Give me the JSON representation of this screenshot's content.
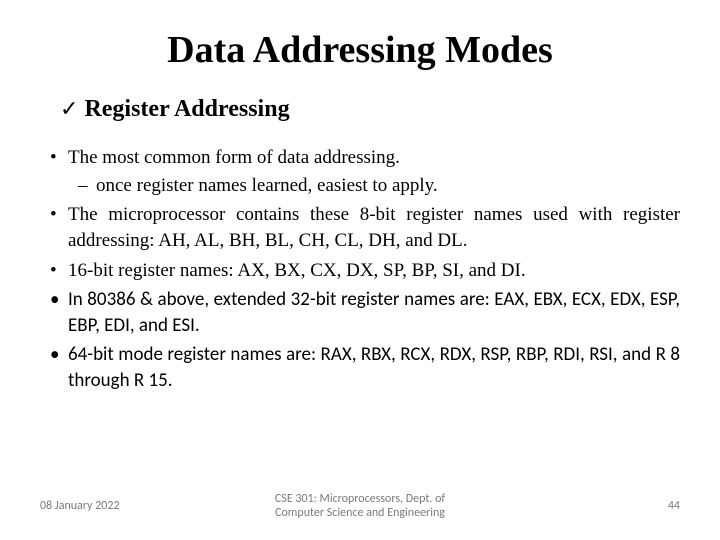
{
  "title": "Data Addressing Modes",
  "subtitle": "Register Addressing",
  "check_glyph": "✓",
  "bullets": {
    "b1": "The most common form of data addressing.",
    "b1_sub": "once register names learned, easiest to apply.",
    "b2": "The microprocessor contains these 8-bit register names used with register addressing: AH, AL, BH, BL, CH, CL, DH, and DL.",
    "b3": "16-bit register names: AX, BX, CX, DX, SP, BP, SI, and DI.",
    "b4": " In 80386 & above, extended 32-bit register names are: EAX, EBX, ECX, EDX, ESP, EBP, EDI, and ESI.",
    "b5": "64-bit mode register names are: RAX, RBX, RCX, RDX, RSP, RBP, RDI, RSI, and R 8 through R 15."
  },
  "footer": {
    "date": "08 January 2022",
    "center_line1": "CSE 301: Microprocessors, Dept. of",
    "center_line2": "Computer Science and Engineering",
    "page": "44"
  },
  "colors": {
    "text": "#000000",
    "footer_text": "#7a7a7a",
    "background": "#ffffff"
  },
  "typography": {
    "title_fontsize": 38,
    "subtitle_fontsize": 24,
    "body_fontsize": 19,
    "footer_fontsize": 12,
    "serif_family": "Times New Roman",
    "sans_family": "Calibri"
  }
}
